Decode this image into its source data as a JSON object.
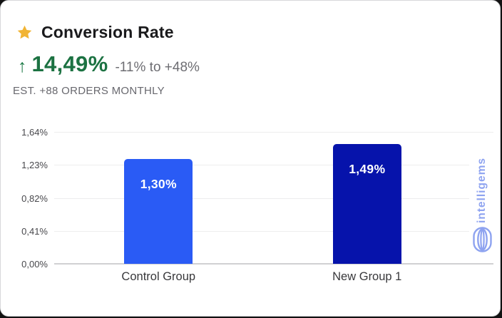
{
  "card": {
    "title": "Conversion Rate",
    "lift": {
      "arrow": "↑",
      "value": "14,49%",
      "range": "-11% to +48%"
    },
    "estimate": "EST. +88 ORDERS MONTHLY"
  },
  "chart_data": {
    "type": "bar",
    "title": "Conversion Rate",
    "categories": [
      "Control Group",
      "New Group 1"
    ],
    "values": [
      1.3,
      1.49
    ],
    "value_labels": [
      "1,30%",
      "1,49%"
    ],
    "series_colors": [
      "#2a5bf5",
      "#0613ab"
    ],
    "y_ticks": [
      {
        "value": 1.64,
        "label": "1,64%"
      },
      {
        "value": 1.23,
        "label": "1,23%"
      },
      {
        "value": 0.82,
        "label": "0,82%"
      },
      {
        "value": 0.41,
        "label": "0,41%"
      },
      {
        "value": 0.0,
        "label": "0,00%"
      }
    ],
    "ylim": [
      0,
      1.64
    ],
    "xlabel": "",
    "ylabel": "",
    "grid": true,
    "legend": false,
    "decimal_separator": ","
  },
  "watermark": {
    "text": "intelligems",
    "color": "#8ea3f0"
  },
  "colors": {
    "bar_control": "#2a5bf5",
    "bar_variant": "#0613ab",
    "positive_green": "#1c7242",
    "star_gold": "#f1b434",
    "muted_gray": "#6d6d72",
    "gridline": "#ededee"
  }
}
